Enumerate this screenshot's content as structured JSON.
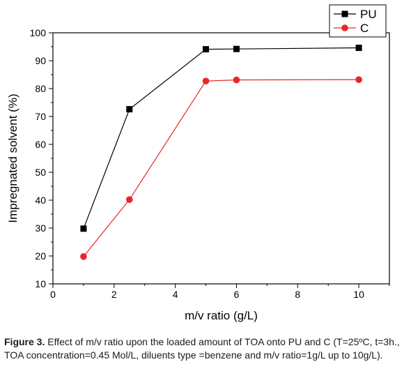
{
  "chart_data": {
    "type": "line",
    "xlabel": "m/v ratio (g/L)",
    "ylabel": "Impregnated solvent (%)",
    "xlim": [
      0,
      11
    ],
    "ylim": [
      10,
      100
    ],
    "xticks": [
      0,
      2,
      4,
      6,
      8,
      10
    ],
    "yticks": [
      10,
      20,
      30,
      40,
      50,
      60,
      70,
      80,
      90,
      100
    ],
    "legend_position": "top-right",
    "series": [
      {
        "name": "PU",
        "color": "#000000",
        "marker": "square",
        "x": [
          1,
          2.5,
          5,
          6,
          10
        ],
        "y": [
          29.8,
          72.6,
          94.1,
          94.2,
          94.6
        ]
      },
      {
        "name": "C",
        "color": "#e8262a",
        "marker": "circle",
        "x": [
          1,
          2.5,
          5,
          6,
          10
        ],
        "y": [
          19.8,
          40.2,
          82.7,
          83.1,
          83.2
        ]
      }
    ]
  },
  "caption": {
    "label": "Figure 3.",
    "text": " Effect of m/v ratio upon the loaded amount of TOA onto PU and C (T=25ºC, t=3h., TOA concentration=0.45 Mol/L, diluents type =benzene and m/v ratio=1g/L up to 10g/L)."
  }
}
